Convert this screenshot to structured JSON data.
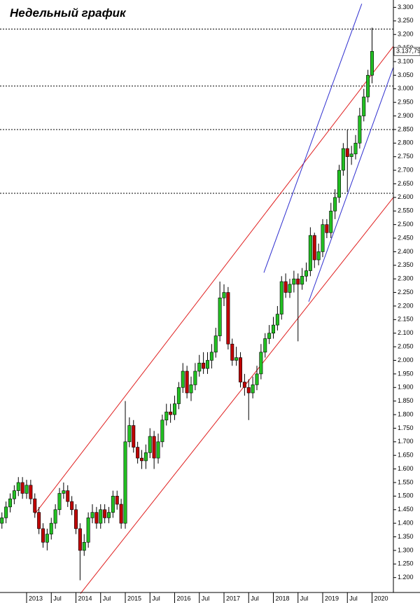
{
  "chart_data": {
    "type": "candlestick",
    "title": "Недельный график",
    "categories": [
      null,
      null,
      null,
      null,
      null,
      null,
      "2013",
      null,
      null,
      null,
      null,
      null,
      "Jul",
      null,
      null,
      null,
      null,
      null,
      "2014",
      null,
      null,
      null,
      null,
      null,
      "Jul",
      null,
      null,
      null,
      null,
      null,
      "2015",
      null,
      null,
      null,
      null,
      null,
      "Jul",
      null,
      null,
      null,
      null,
      null,
      "2016",
      null,
      null,
      null,
      null,
      null,
      "Jul",
      null,
      null,
      null,
      null,
      null,
      "2017",
      null,
      null,
      null,
      null,
      null,
      "Jul",
      null,
      null,
      null,
      null,
      null,
      "2018",
      null,
      null,
      null,
      null,
      null,
      "Jul",
      null,
      null,
      null,
      null,
      null,
      "2019",
      null,
      null,
      null,
      null,
      null,
      "Jul",
      null,
      null,
      null,
      null,
      null,
      "2020"
    ],
    "open": [
      1400,
      1420,
      1460,
      1490,
      1520,
      1550,
      1510,
      1540,
      1490,
      1440,
      1380,
      1330,
      1360,
      1400,
      1450,
      1510,
      1520,
      1480,
      1450,
      1380,
      1300,
      1330,
      1420,
      1440,
      1400,
      1450,
      1420,
      1440,
      1500,
      1470,
      1400,
      1700,
      1760,
      1680,
      1640,
      1630,
      1660,
      1720,
      1640,
      1700,
      1780,
      1810,
      1800,
      1840,
      1900,
      1960,
      1880,
      1910,
      1960,
      1990,
      1970,
      2000,
      2030,
      2090,
      2230,
      2250,
      2060,
      2000,
      2010,
      1920,
      1900,
      1880,
      1910,
      1950,
      2030,
      2080,
      2100,
      2130,
      2170,
      2290,
      2250,
      2280,
      2300,
      2280,
      2310,
      2330,
      2460,
      2370,
      2400,
      2500,
      2470,
      2550,
      2600,
      2700,
      2780,
      2750,
      2760,
      2800,
      2900,
      2970,
      3050
    ],
    "high": [
      1440,
      1480,
      1510,
      1540,
      1570,
      1570,
      1560,
      1560,
      1510,
      1460,
      1400,
      1380,
      1420,
      1470,
      1530,
      1550,
      1540,
      1500,
      1470,
      1400,
      1360,
      1440,
      1470,
      1460,
      1470,
      1470,
      1460,
      1520,
      1520,
      1490,
      1850,
      1790,
      1780,
      1700,
      1670,
      1690,
      1750,
      1740,
      1730,
      1800,
      1840,
      1840,
      1870,
      1920,
      1990,
      1980,
      1940,
      1990,
      2020,
      2030,
      2030,
      2060,
      2120,
      2290,
      2280,
      2270,
      2080,
      2050,
      2030,
      1950,
      1930,
      1940,
      1980,
      2060,
      2100,
      2130,
      2160,
      2200,
      2310,
      2320,
      2300,
      2330,
      2320,
      2340,
      2360,
      2490,
      2470,
      2430,
      2520,
      2520,
      2580,
      2630,
      2720,
      2800,
      2850,
      2790,
      2830,
      2930,
      3000,
      3070,
      3225
    ],
    "low": [
      1380,
      1400,
      1440,
      1470,
      1500,
      1490,
      1490,
      1470,
      1420,
      1360,
      1310,
      1300,
      1340,
      1380,
      1430,
      1490,
      1460,
      1430,
      1360,
      1190,
      1280,
      1310,
      1400,
      1380,
      1380,
      1400,
      1400,
      1420,
      1450,
      1380,
      1380,
      1680,
      1660,
      1620,
      1600,
      1600,
      1640,
      1600,
      1620,
      1680,
      1760,
      1770,
      1780,
      1820,
      1880,
      1860,
      1850,
      1890,
      1940,
      1950,
      1950,
      1970,
      2010,
      2070,
      2200,
      2040,
      1980,
      1980,
      1900,
      1870,
      1780,
      1860,
      1890,
      1930,
      2010,
      2060,
      2080,
      2110,
      2150,
      2230,
      2230,
      2250,
      2070,
      2260,
      2290,
      2310,
      2340,
      2350,
      2380,
      2450,
      2450,
      2520,
      2580,
      2680,
      2620,
      2720,
      2740,
      2780,
      2880,
      2950,
      3020
    ],
    "close": [
      1420,
      1460,
      1490,
      1520,
      1550,
      1510,
      1540,
      1490,
      1440,
      1380,
      1330,
      1360,
      1400,
      1450,
      1510,
      1520,
      1480,
      1450,
      1380,
      1300,
      1330,
      1420,
      1440,
      1400,
      1450,
      1420,
      1440,
      1500,
      1470,
      1400,
      1700,
      1760,
      1680,
      1640,
      1630,
      1660,
      1720,
      1640,
      1700,
      1780,
      1810,
      1800,
      1840,
      1900,
      1960,
      1880,
      1910,
      1960,
      1990,
      1970,
      2000,
      2030,
      2090,
      2230,
      2250,
      2060,
      2000,
      2010,
      1920,
      1900,
      1880,
      1910,
      1950,
      2030,
      2080,
      2100,
      2130,
      2170,
      2290,
      2250,
      2280,
      2300,
      2280,
      2310,
      2330,
      2460,
      2370,
      2400,
      2500,
      2470,
      2550,
      2600,
      2700,
      2780,
      2750,
      2760,
      2800,
      2900,
      2970,
      3050,
      3138
    ],
    "up_color": "#22c022",
    "down_color": "#c00000",
    "ylim": [
      1145,
      3327
    ],
    "yticks": [
      {
        "value": 1200,
        "label": "1.200"
      },
      {
        "value": 1250,
        "label": "1.250"
      },
      {
        "value": 1300,
        "label": "1.300"
      },
      {
        "value": 1350,
        "label": "1.350"
      },
      {
        "value": 1400,
        "label": "1.400"
      },
      {
        "value": 1450,
        "label": "1.450"
      },
      {
        "value": 1500,
        "label": "1.500"
      },
      {
        "value": 1550,
        "label": "1.550"
      },
      {
        "value": 1600,
        "label": "1.600"
      },
      {
        "value": 1650,
        "label": "1.650"
      },
      {
        "value": 1700,
        "label": "1.700"
      },
      {
        "value": 1750,
        "label": "1.750"
      },
      {
        "value": 1800,
        "label": "1.800"
      },
      {
        "value": 1850,
        "label": "1.850"
      },
      {
        "value": 1900,
        "label": "1.900"
      },
      {
        "value": 1950,
        "label": "1.950"
      },
      {
        "value": 2000,
        "label": "2.000"
      },
      {
        "value": 2050,
        "label": "2.050"
      },
      {
        "value": 2100,
        "label": "2.100"
      },
      {
        "value": 2150,
        "label": "2.150"
      },
      {
        "value": 2200,
        "label": "2.200"
      },
      {
        "value": 2250,
        "label": "2.250"
      },
      {
        "value": 2300,
        "label": "2.300"
      },
      {
        "value": 2350,
        "label": "2.350"
      },
      {
        "value": 2400,
        "label": "2.400"
      },
      {
        "value": 2450,
        "label": "2.450"
      },
      {
        "value": 2500,
        "label": "2.500"
      },
      {
        "value": 2550,
        "label": "2.550"
      },
      {
        "value": 2600,
        "label": "2.600"
      },
      {
        "value": 2650,
        "label": "2.650"
      },
      {
        "value": 2700,
        "label": "2.700"
      },
      {
        "value": 2750,
        "label": "2.750"
      },
      {
        "value": 2800,
        "label": "2.800"
      },
      {
        "value": 2850,
        "label": "2.850"
      },
      {
        "value": 2900,
        "label": "2.900"
      },
      {
        "value": 2950,
        "label": "2.950"
      },
      {
        "value": 3000,
        "label": "3.000"
      },
      {
        "value": 3050,
        "label": "3.050"
      },
      {
        "value": 3100,
        "label": "3.100"
      },
      {
        "value": 3150,
        "label": "3.150"
      },
      {
        "value": 3200,
        "label": "3.200"
      },
      {
        "value": 3250,
        "label": "3.250"
      },
      {
        "value": 3300,
        "label": "3.300"
      }
    ],
    "last_price": {
      "value": 3137.79,
      "label": "3.137,79"
    },
    "levels": [
      3220,
      3010,
      2850,
      2615
    ],
    "trend_lines": [
      {
        "color": "#e02020",
        "from": [
          8,
          1434
        ],
        "to": [
          95.2,
          3157
        ]
      },
      {
        "color": "#e02020",
        "from": [
          19.1,
          1141
        ],
        "to": [
          95.2,
          2600
        ]
      },
      {
        "color": "#3030d0",
        "from": [
          63.7,
          2323
        ],
        "to": [
          87.5,
          3313
        ]
      },
      {
        "color": "#3030d0",
        "from": [
          74.6,
          2216
        ],
        "to": [
          95.2,
          3080
        ]
      }
    ]
  }
}
